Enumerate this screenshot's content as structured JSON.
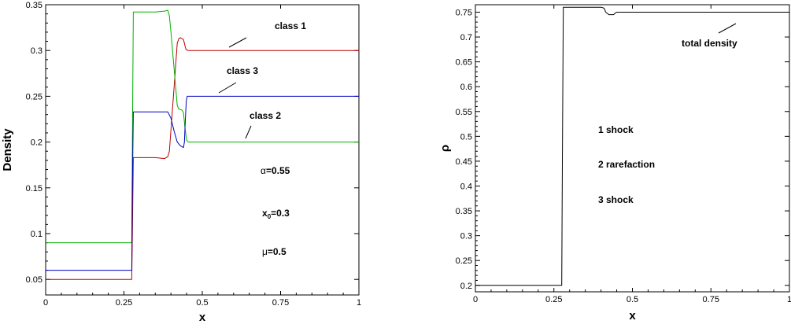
{
  "chart_data": [
    {
      "type": "line",
      "xlabel": "x",
      "ylabel": "Density",
      "xlim": [
        0,
        1
      ],
      "ylim": [
        0.033,
        0.35
      ],
      "x_ticks": [
        "0",
        "0.25",
        "0.5",
        "0.75",
        "1"
      ],
      "x_tick_values": [
        0,
        0.25,
        0.5,
        0.75,
        1
      ],
      "y_ticks": [
        "0.05",
        "0.1",
        "0.15",
        "0.2",
        "0.25",
        "0.3",
        "0.35"
      ],
      "y_tick_values": [
        0.05,
        0.1,
        0.15,
        0.2,
        0.25,
        0.3,
        0.35
      ],
      "series": [
        {
          "name": "class 1",
          "color": "#c00000",
          "x": [
            0,
            0.275,
            0.277,
            0.28,
            0.3,
            0.35,
            0.38,
            0.39,
            0.395,
            0.41,
            0.42,
            0.425,
            0.43,
            0.44,
            0.445,
            0.448,
            0.455,
            0.46,
            0.5,
            0.75,
            1
          ],
          "y": [
            0.05,
            0.05,
            0.1,
            0.183,
            0.183,
            0.183,
            0.182,
            0.184,
            0.19,
            0.26,
            0.308,
            0.313,
            0.314,
            0.312,
            0.305,
            0.301,
            0.3,
            0.3,
            0.3,
            0.3,
            0.3
          ]
        },
        {
          "name": "class 2",
          "color": "#00b000",
          "x": [
            0,
            0.275,
            0.277,
            0.28,
            0.3,
            0.35,
            0.38,
            0.39,
            0.395,
            0.4,
            0.41,
            0.42,
            0.425,
            0.435,
            0.44,
            0.445,
            0.45,
            0.455,
            0.5,
            0.75,
            1
          ],
          "y": [
            0.09,
            0.09,
            0.2,
            0.342,
            0.342,
            0.342,
            0.343,
            0.344,
            0.338,
            0.32,
            0.28,
            0.24,
            0.236,
            0.235,
            0.232,
            0.215,
            0.202,
            0.2,
            0.2,
            0.2,
            0.2
          ]
        },
        {
          "name": "class 3",
          "color": "#0000c0",
          "x": [
            0,
            0.275,
            0.277,
            0.28,
            0.3,
            0.35,
            0.39,
            0.4,
            0.41,
            0.42,
            0.43,
            0.44,
            0.443,
            0.446,
            0.449,
            0.452,
            0.455,
            0.5,
            0.75,
            1
          ],
          "y": [
            0.06,
            0.06,
            0.15,
            0.233,
            0.233,
            0.233,
            0.233,
            0.226,
            0.212,
            0.2,
            0.196,
            0.194,
            0.2,
            0.225,
            0.245,
            0.25,
            0.25,
            0.25,
            0.25,
            0.25
          ]
        }
      ],
      "annotations": {
        "class1": "class 1",
        "class2": "class 2",
        "class3": "class 3",
        "alpha_symbol": "α",
        "alpha_value": "=0.55",
        "x0_symbol": "x",
        "x0_sub": "0",
        "x0_value": "=0.3",
        "mu_symbol": "μ",
        "mu_value": "=0.5"
      }
    },
    {
      "type": "line",
      "xlabel": "x",
      "ylabel": "ρ",
      "xlim": [
        0,
        1
      ],
      "ylim": [
        0.187,
        0.765
      ],
      "x_ticks": [
        "0",
        "0.25",
        "0.5",
        "0.75",
        "1"
      ],
      "x_tick_values": [
        0,
        0.25,
        0.5,
        0.75,
        1
      ],
      "y_ticks": [
        "0.2",
        "0.25",
        "0.3",
        "0.35",
        "0.4",
        "0.45",
        "0.5",
        "0.55",
        "0.6",
        "0.65",
        "0.7",
        "0.75"
      ],
      "y_tick_values": [
        0.2,
        0.25,
        0.3,
        0.35,
        0.4,
        0.45,
        0.5,
        0.55,
        0.6,
        0.65,
        0.7,
        0.75
      ],
      "series": [
        {
          "name": "total density",
          "color": "#000000",
          "x": [
            0,
            0.275,
            0.277,
            0.28,
            0.3,
            0.35,
            0.39,
            0.4,
            0.41,
            0.415,
            0.425,
            0.43,
            0.435,
            0.44,
            0.445,
            0.45,
            0.46,
            0.5,
            0.75,
            1
          ],
          "y": [
            0.2,
            0.2,
            0.45,
            0.76,
            0.76,
            0.76,
            0.76,
            0.76,
            0.758,
            0.75,
            0.745,
            0.745,
            0.745,
            0.745,
            0.748,
            0.75,
            0.75,
            0.75,
            0.75,
            0.75
          ]
        }
      ],
      "annotations": {
        "total": "total density",
        "line1": "1 shock",
        "line2": "2 rarefaction",
        "line3": "3 shock"
      }
    }
  ]
}
